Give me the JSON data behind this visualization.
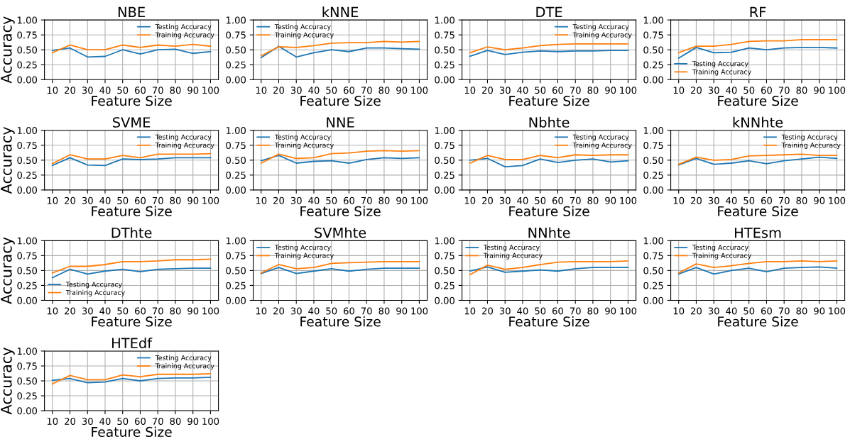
{
  "chart_data": [
    {
      "type": "line",
      "title": "NBE",
      "xlabel": "Feature Size",
      "ylabel": "Accuracy",
      "categories": [
        "10",
        "20",
        "30",
        "40",
        "50",
        "60",
        "70",
        "80",
        "90",
        "100"
      ],
      "ylim": [
        0,
        1
      ],
      "yticks": [
        {
          "value": 0,
          "label": "0.00"
        },
        {
          "value": 0.25,
          "label": "0.25"
        },
        {
          "value": 0.5,
          "label": "0.50"
        },
        {
          "value": 0.75,
          "label": "0.75"
        },
        {
          "value": 1,
          "label": "1.00"
        }
      ],
      "grid": true,
      "legend": "top right",
      "series": [
        {
          "name": "Testing Accuracy",
          "color": "#1f77b4",
          "values": [
            0.49,
            0.53,
            0.38,
            0.39,
            0.5,
            0.43,
            0.5,
            0.51,
            0.44,
            0.47
          ]
        },
        {
          "name": "Training Accuracy",
          "color": "#ff7f0e",
          "values": [
            0.45,
            0.58,
            0.5,
            0.5,
            0.58,
            0.54,
            0.58,
            0.56,
            0.59,
            0.56
          ]
        }
      ]
    },
    {
      "type": "line",
      "title": "kNNE",
      "xlabel": "Feature Size",
      "categories": [
        "10",
        "20",
        "30",
        "40",
        "50",
        "60",
        "70",
        "80",
        "90",
        "100"
      ],
      "ylim": [
        0,
        1
      ],
      "yticks": [
        {
          "value": 0,
          "label": "0.00"
        },
        {
          "value": 0.25,
          "label": "0.25"
        },
        {
          "value": 0.5,
          "label": "0.50"
        },
        {
          "value": 0.75,
          "label": "0.75"
        },
        {
          "value": 1,
          "label": "1.00"
        }
      ],
      "grid": true,
      "legend": "top left",
      "series": [
        {
          "name": "Testing Accuracy",
          "color": "#1f77b4",
          "values": [
            0.37,
            0.56,
            0.38,
            0.45,
            0.5,
            0.47,
            0.53,
            0.53,
            0.52,
            0.51
          ]
        },
        {
          "name": "Training Accuracy",
          "color": "#ff7f0e",
          "values": [
            0.4,
            0.55,
            0.54,
            0.57,
            0.61,
            0.62,
            0.62,
            0.64,
            0.63,
            0.64
          ]
        }
      ]
    },
    {
      "type": "line",
      "title": "DTE",
      "xlabel": "Feature Size",
      "categories": [
        "10",
        "20",
        "30",
        "40",
        "50",
        "60",
        "70",
        "80",
        "90",
        "100"
      ],
      "ylim": [
        0,
        1
      ],
      "yticks": [
        {
          "value": 0,
          "label": "0.00"
        },
        {
          "value": 0.25,
          "label": "0.25"
        },
        {
          "value": 0.5,
          "label": "0.50"
        },
        {
          "value": 0.75,
          "label": "0.75"
        },
        {
          "value": 1,
          "label": "1.00"
        }
      ],
      "grid": true,
      "legend": "top right",
      "series": [
        {
          "name": "Testing Accuracy",
          "color": "#1f77b4",
          "values": [
            0.39,
            0.49,
            0.42,
            0.46,
            0.48,
            0.47,
            0.48,
            0.48,
            0.49,
            0.49
          ]
        },
        {
          "name": "Training Accuracy",
          "color": "#ff7f0e",
          "values": [
            0.45,
            0.55,
            0.5,
            0.53,
            0.57,
            0.59,
            0.6,
            0.6,
            0.6,
            0.6
          ]
        }
      ]
    },
    {
      "type": "line",
      "title": "RF",
      "xlabel": "Feature Size",
      "categories": [
        "10",
        "20",
        "30",
        "40",
        "50",
        "60",
        "70",
        "80",
        "90",
        "100"
      ],
      "ylim": [
        0,
        1
      ],
      "yticks": [
        {
          "value": 0,
          "label": "0.00"
        },
        {
          "value": 0.25,
          "label": "0.25"
        },
        {
          "value": 0.5,
          "label": "0.50"
        },
        {
          "value": 0.75,
          "label": "0.75"
        },
        {
          "value": 1,
          "label": "1.00"
        }
      ],
      "grid": true,
      "legend": "bottom left",
      "series": [
        {
          "name": "Testing Accuracy",
          "color": "#1f77b4",
          "values": [
            0.36,
            0.54,
            0.45,
            0.46,
            0.53,
            0.5,
            0.53,
            0.54,
            0.54,
            0.53
          ]
        },
        {
          "name": "Training Accuracy",
          "color": "#ff7f0e",
          "values": [
            0.45,
            0.56,
            0.56,
            0.59,
            0.64,
            0.65,
            0.65,
            0.67,
            0.67,
            0.67
          ]
        }
      ]
    },
    {
      "type": "line",
      "title": "SVME",
      "xlabel": "Feature Size",
      "ylabel": "Accuracy",
      "categories": [
        "10",
        "20",
        "30",
        "40",
        "50",
        "60",
        "70",
        "80",
        "90",
        "100"
      ],
      "ylim": [
        0,
        1
      ],
      "yticks": [
        {
          "value": 0,
          "label": "0.00"
        },
        {
          "value": 0.25,
          "label": "0.25"
        },
        {
          "value": 0.5,
          "label": "0.50"
        },
        {
          "value": 0.75,
          "label": "0.75"
        },
        {
          "value": 1,
          "label": "1.00"
        }
      ],
      "grid": true,
      "legend": "top right",
      "series": [
        {
          "name": "Testing Accuracy",
          "color": "#1f77b4",
          "values": [
            0.41,
            0.54,
            0.42,
            0.41,
            0.52,
            0.51,
            0.52,
            0.54,
            0.54,
            0.54
          ]
        },
        {
          "name": "Training Accuracy",
          "color": "#ff7f0e",
          "values": [
            0.44,
            0.59,
            0.52,
            0.52,
            0.58,
            0.54,
            0.6,
            0.6,
            0.6,
            0.61
          ]
        }
      ]
    },
    {
      "type": "line",
      "title": "NNE",
      "xlabel": "Feature Size",
      "categories": [
        "10",
        "20",
        "30",
        "40",
        "50",
        "60",
        "70",
        "80",
        "90",
        "100"
      ],
      "ylim": [
        0,
        1
      ],
      "yticks": [
        {
          "value": 0,
          "label": "0.00"
        },
        {
          "value": 0.25,
          "label": "0.25"
        },
        {
          "value": 0.5,
          "label": "0.50"
        },
        {
          "value": 0.75,
          "label": "0.75"
        },
        {
          "value": 1,
          "label": "1.00"
        }
      ],
      "grid": true,
      "legend": "top left",
      "series": [
        {
          "name": "Testing Accuracy",
          "color": "#1f77b4",
          "values": [
            0.49,
            0.58,
            0.45,
            0.48,
            0.49,
            0.45,
            0.51,
            0.54,
            0.53,
            0.54
          ]
        },
        {
          "name": "Training Accuracy",
          "color": "#ff7f0e",
          "values": [
            0.45,
            0.6,
            0.53,
            0.54,
            0.61,
            0.62,
            0.65,
            0.66,
            0.65,
            0.66
          ]
        }
      ]
    },
    {
      "type": "line",
      "title": "Nbhte",
      "xlabel": "Feature Size",
      "categories": [
        "10",
        "20",
        "30",
        "40",
        "50",
        "60",
        "70",
        "80",
        "90",
        "100"
      ],
      "ylim": [
        0,
        1
      ],
      "yticks": [
        {
          "value": 0,
          "label": "0.00"
        },
        {
          "value": 0.25,
          "label": "0.25"
        },
        {
          "value": 0.5,
          "label": "0.50"
        },
        {
          "value": 0.75,
          "label": "0.75"
        },
        {
          "value": 1,
          "label": "1.00"
        }
      ],
      "grid": true,
      "legend": "top right",
      "series": [
        {
          "name": "Testing Accuracy",
          "color": "#1f77b4",
          "values": [
            0.5,
            0.53,
            0.39,
            0.41,
            0.52,
            0.46,
            0.5,
            0.52,
            0.47,
            0.49
          ]
        },
        {
          "name": "Training Accuracy",
          "color": "#ff7f0e",
          "values": [
            0.45,
            0.58,
            0.51,
            0.51,
            0.58,
            0.54,
            0.59,
            0.58,
            0.59,
            0.59
          ]
        }
      ]
    },
    {
      "type": "line",
      "title": "kNNhte",
      "xlabel": "Feature Size",
      "categories": [
        "10",
        "20",
        "30",
        "40",
        "50",
        "60",
        "70",
        "80",
        "90",
        "100"
      ],
      "ylim": [
        0,
        1
      ],
      "yticks": [
        {
          "value": 0,
          "label": "0.00"
        },
        {
          "value": 0.25,
          "label": "0.25"
        },
        {
          "value": 0.5,
          "label": "0.50"
        },
        {
          "value": 0.75,
          "label": "0.75"
        },
        {
          "value": 1,
          "label": "1.00"
        }
      ],
      "grid": true,
      "legend": "top right",
      "series": [
        {
          "name": "Testing Accuracy",
          "color": "#1f77b4",
          "values": [
            0.42,
            0.53,
            0.43,
            0.45,
            0.49,
            0.44,
            0.49,
            0.52,
            0.55,
            0.53
          ]
        },
        {
          "name": "Training Accuracy",
          "color": "#ff7f0e",
          "values": [
            0.43,
            0.55,
            0.5,
            0.51,
            0.57,
            0.58,
            0.59,
            0.6,
            0.58,
            0.58
          ]
        }
      ]
    },
    {
      "type": "line",
      "title": "DThte",
      "xlabel": "Feature Size",
      "ylabel": "Accuracy",
      "categories": [
        "10",
        "20",
        "30",
        "40",
        "50",
        "60",
        "70",
        "80",
        "90",
        "100"
      ],
      "ylim": [
        0,
        1
      ],
      "yticks": [
        {
          "value": 0,
          "label": "0.00"
        },
        {
          "value": 0.25,
          "label": "0.25"
        },
        {
          "value": 0.5,
          "label": "0.50"
        },
        {
          "value": 0.75,
          "label": "0.75"
        },
        {
          "value": 1,
          "label": "1.00"
        }
      ],
      "grid": true,
      "legend": "bottom left",
      "series": [
        {
          "name": "Testing Accuracy",
          "color": "#1f77b4",
          "values": [
            0.38,
            0.52,
            0.44,
            0.49,
            0.52,
            0.48,
            0.52,
            0.53,
            0.54,
            0.54
          ]
        },
        {
          "name": "Training Accuracy",
          "color": "#ff7f0e",
          "values": [
            0.46,
            0.57,
            0.57,
            0.6,
            0.65,
            0.65,
            0.66,
            0.68,
            0.68,
            0.69
          ]
        }
      ]
    },
    {
      "type": "line",
      "title": "SVMhte",
      "xlabel": "Feature Size",
      "categories": [
        "10",
        "20",
        "30",
        "40",
        "50",
        "60",
        "70",
        "80",
        "90",
        "100"
      ],
      "ylim": [
        0,
        1
      ],
      "yticks": [
        {
          "value": 0,
          "label": "0.00"
        },
        {
          "value": 0.25,
          "label": "0.25"
        },
        {
          "value": 0.5,
          "label": "0.50"
        },
        {
          "value": 0.75,
          "label": "0.75"
        },
        {
          "value": 1,
          "label": "1.00"
        }
      ],
      "grid": true,
      "legend": "top left",
      "series": [
        {
          "name": "Testing Accuracy",
          "color": "#1f77b4",
          "values": [
            0.45,
            0.55,
            0.45,
            0.49,
            0.53,
            0.49,
            0.52,
            0.54,
            0.54,
            0.54
          ]
        },
        {
          "name": "Training Accuracy",
          "color": "#ff7f0e",
          "values": [
            0.46,
            0.6,
            0.53,
            0.55,
            0.62,
            0.63,
            0.64,
            0.65,
            0.65,
            0.65
          ]
        }
      ]
    },
    {
      "type": "line",
      "title": "NNhte",
      "xlabel": "Feature Size",
      "categories": [
        "10",
        "20",
        "30",
        "40",
        "50",
        "60",
        "70",
        "80",
        "90",
        "100"
      ],
      "ylim": [
        0,
        1
      ],
      "yticks": [
        {
          "value": 0,
          "label": "0.00"
        },
        {
          "value": 0.25,
          "label": "0.25"
        },
        {
          "value": 0.5,
          "label": "0.50"
        },
        {
          "value": 0.75,
          "label": "0.75"
        },
        {
          "value": 1,
          "label": "1.00"
        }
      ],
      "grid": true,
      "legend": "top left",
      "series": [
        {
          "name": "Testing Accuracy",
          "color": "#1f77b4",
          "values": [
            0.49,
            0.56,
            0.47,
            0.49,
            0.51,
            0.49,
            0.53,
            0.55,
            0.55,
            0.55
          ]
        },
        {
          "name": "Training Accuracy",
          "color": "#ff7f0e",
          "values": [
            0.43,
            0.59,
            0.52,
            0.55,
            0.6,
            0.64,
            0.65,
            0.65,
            0.65,
            0.66
          ]
        }
      ]
    },
    {
      "type": "line",
      "title": "HTEsm",
      "xlabel": "Feature Size",
      "categories": [
        "10",
        "20",
        "30",
        "40",
        "50",
        "60",
        "70",
        "80",
        "90",
        "100"
      ],
      "ylim": [
        0,
        1
      ],
      "yticks": [
        {
          "value": 0,
          "label": "0.00"
        },
        {
          "value": 0.25,
          "label": "0.25"
        },
        {
          "value": 0.5,
          "label": "0.50"
        },
        {
          "value": 0.75,
          "label": "0.75"
        },
        {
          "value": 1,
          "label": "1.00"
        }
      ],
      "grid": true,
      "legend": "top left",
      "series": [
        {
          "name": "Testing Accuracy",
          "color": "#1f77b4",
          "values": [
            0.44,
            0.55,
            0.44,
            0.5,
            0.54,
            0.48,
            0.54,
            0.55,
            0.56,
            0.54
          ]
        },
        {
          "name": "Training Accuracy",
          "color": "#ff7f0e",
          "values": [
            0.46,
            0.61,
            0.55,
            0.58,
            0.62,
            0.65,
            0.65,
            0.66,
            0.65,
            0.66
          ]
        }
      ]
    },
    {
      "type": "line",
      "title": "HTEdf",
      "xlabel": "Feature Size",
      "ylabel": "Accuracy",
      "categories": [
        "10",
        "20",
        "30",
        "40",
        "50",
        "60",
        "70",
        "80",
        "90",
        "100"
      ],
      "ylim": [
        0,
        1
      ],
      "yticks": [
        {
          "value": 0,
          "label": "0.00"
        },
        {
          "value": 0.25,
          "label": "0.25"
        },
        {
          "value": 0.5,
          "label": "0.50"
        },
        {
          "value": 0.75,
          "label": "0.75"
        },
        {
          "value": 1,
          "label": "1.00"
        }
      ],
      "grid": true,
      "legend": "top right",
      "series": [
        {
          "name": "Testing Accuracy",
          "color": "#1f77b4",
          "values": [
            0.51,
            0.54,
            0.47,
            0.48,
            0.54,
            0.5,
            0.54,
            0.55,
            0.55,
            0.56
          ]
        },
        {
          "name": "Training Accuracy",
          "color": "#ff7f0e",
          "values": [
            0.45,
            0.59,
            0.52,
            0.52,
            0.6,
            0.57,
            0.61,
            0.61,
            0.61,
            0.62
          ]
        }
      ]
    }
  ]
}
